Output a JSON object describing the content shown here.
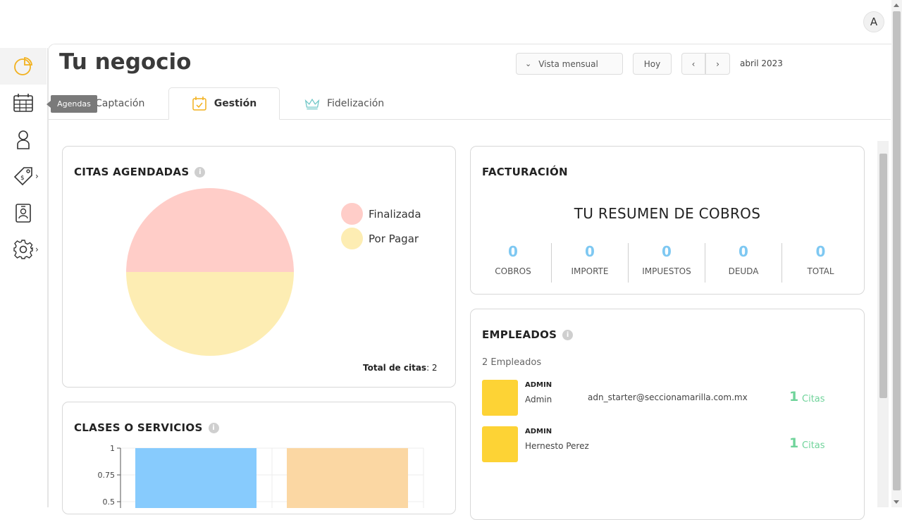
{
  "user": {
    "avatar_initial": "A"
  },
  "sidebar": {
    "tooltip": "Agendas",
    "items": [
      {
        "icon": "pie-chart-icon",
        "active": true
      },
      {
        "icon": "calendar-icon"
      },
      {
        "icon": "user-icon"
      },
      {
        "icon": "price-tag-icon",
        "has_submenu": true
      },
      {
        "icon": "id-badge-icon"
      },
      {
        "icon": "gear-icon",
        "has_submenu": true
      }
    ],
    "chevron": "›"
  },
  "header": {
    "title": "Tu negocio",
    "view_select": "Vista mensual",
    "today_label": "Hoy",
    "prev_label": "‹",
    "next_label": "›",
    "period": "abril 2023"
  },
  "tabs": [
    {
      "label": "Captación",
      "icon": "megaphone-icon"
    },
    {
      "label": "Gestión",
      "icon": "calendar-check-icon",
      "active": true
    },
    {
      "label": "Fidelización",
      "icon": "crown-icon"
    }
  ],
  "citas": {
    "title": "CITAS AGENDADAS",
    "info": "i",
    "total_label": "Total de citas",
    "total_value": ": 2",
    "colors": {
      "finalizada": "#ffcdc8",
      "por_pagar": "#fdedb3"
    }
  },
  "clases": {
    "title": "CLASES O SERVICIOS",
    "info": "i",
    "colors": {
      "bar1": "#87cbfd",
      "bar2": "#fbd7a3"
    }
  },
  "facturacion": {
    "title": "FACTURACIÓN",
    "subtitle": "TU RESUMEN DE COBROS",
    "stats": [
      {
        "value": "0",
        "label": "COBROS"
      },
      {
        "value": "0",
        "label": "IMPORTE"
      },
      {
        "value": "0",
        "label": "IMPUESTOS"
      },
      {
        "value": "0",
        "label": "DEUDA"
      },
      {
        "value": "0",
        "label": "TOTAL"
      }
    ]
  },
  "empleados": {
    "title": "EMPLEADOS",
    "info": "i",
    "count": "2 Empleados",
    "rows": [
      {
        "role": "ADMIN",
        "name": "Admin",
        "email": "adn_starter@seccionamarilla.com.mx",
        "citas_count": "1",
        "citas_label": "Citas"
      },
      {
        "role": "ADMIN",
        "name": "Hernesto Perez",
        "email": "",
        "citas_count": "1",
        "citas_label": "Citas"
      }
    ]
  },
  "chart_data": [
    {
      "type": "pie",
      "labels": [
        "Finalizada",
        "Por Pagar"
      ],
      "values": [
        1,
        1
      ],
      "legend": "top-right"
    },
    {
      "type": "bar",
      "categories": [
        "",
        ""
      ],
      "values": [
        1,
        1
      ],
      "ylim": [
        0,
        1
      ],
      "yticks": [
        "1",
        "0.75",
        "0.5"
      ],
      "grid": true
    }
  ]
}
